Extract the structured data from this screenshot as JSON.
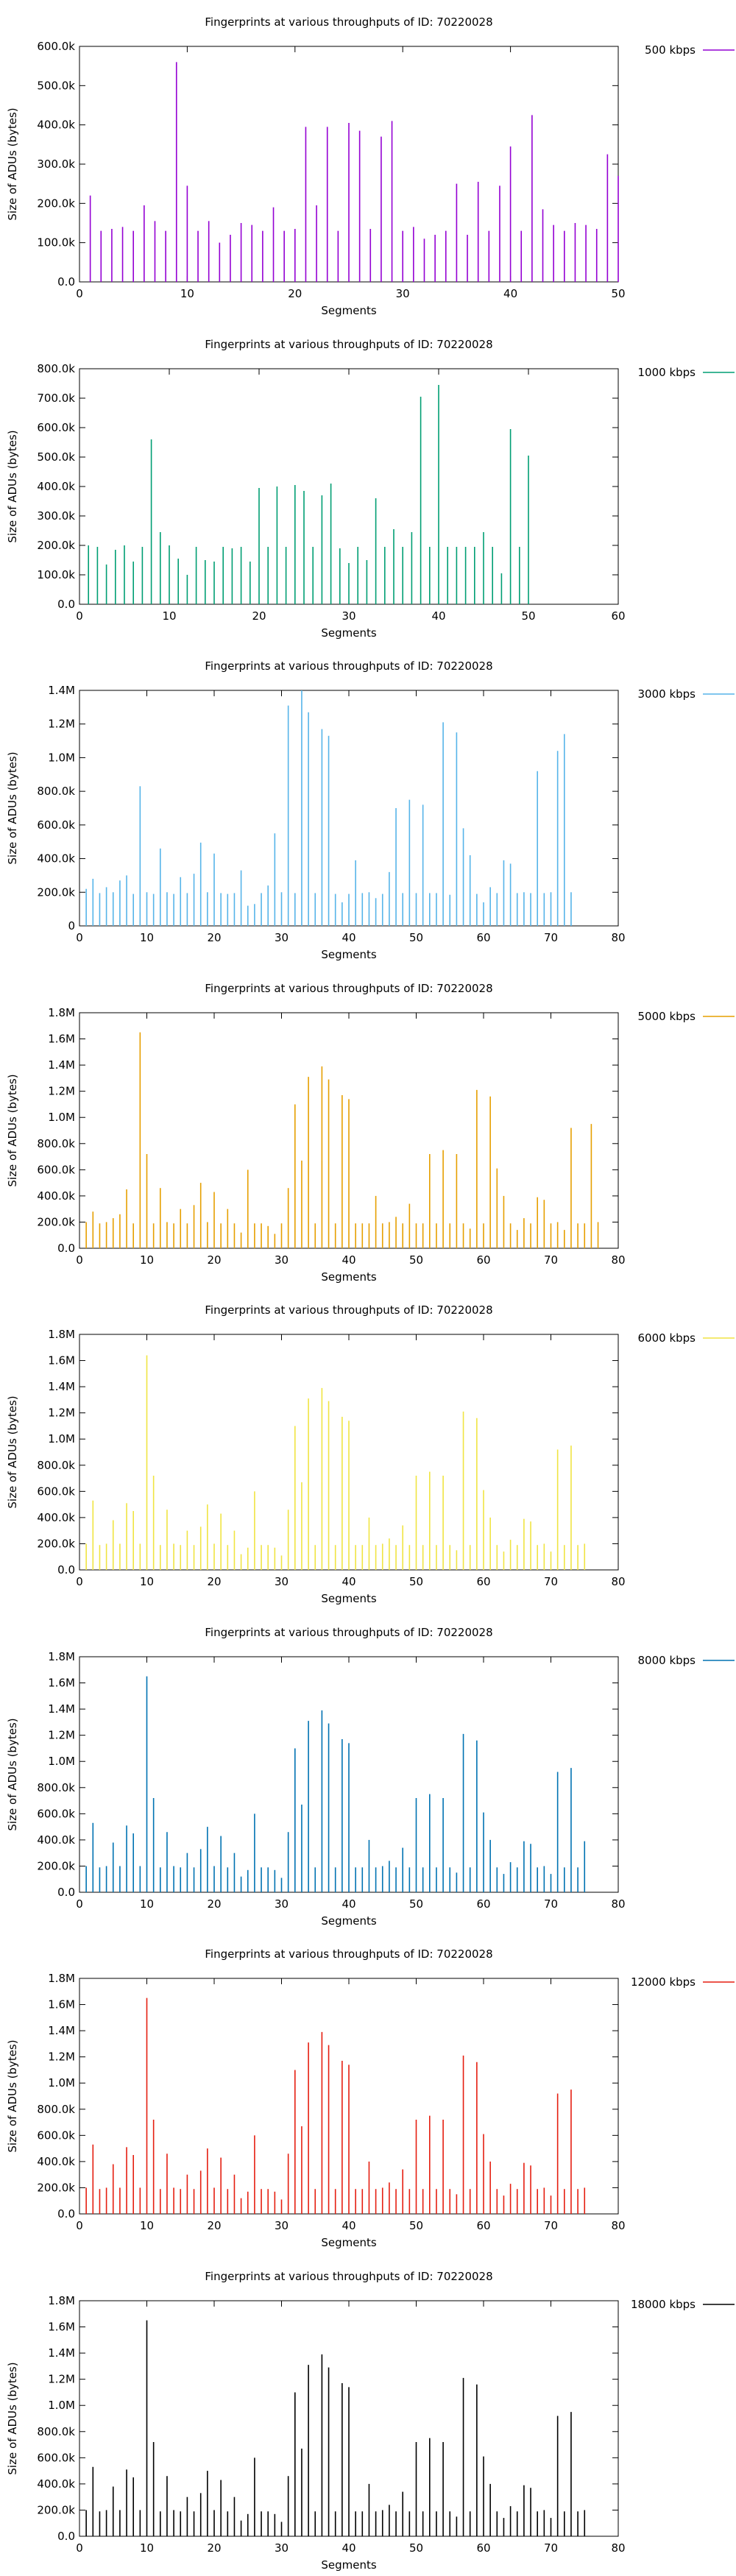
{
  "chart_data": [
    {
      "type": "bar",
      "title": "Fingerprints at various throughputs of ID: 70220028",
      "xlabel": "Segments",
      "ylabel": "Size of ADUs (bytes)",
      "xlim": [
        0,
        50
      ],
      "ylim": [
        0,
        600000
      ],
      "xticks": [
        "0",
        "10",
        "20",
        "30",
        "40",
        "50"
      ],
      "yticks": [
        "0.0",
        "100.0k",
        "200.0k",
        "300.0k",
        "400.0k",
        "500.0k",
        "600.0k"
      ],
      "series": [
        {
          "name": "500 kbps",
          "color": "#9400d3",
          "values": [
            220000,
            130000,
            135000,
            140000,
            130000,
            195000,
            155000,
            130000,
            560000,
            245000,
            130000,
            155000,
            100000,
            120000,
            150000,
            145000,
            130000,
            190000,
            130000,
            135000,
            395000,
            195000,
            395000,
            130000,
            405000,
            385000,
            135000,
            370000,
            410000,
            130000,
            140000,
            110000,
            120000,
            130000,
            250000,
            120000,
            255000,
            130000,
            245000,
            345000,
            130000,
            425000,
            185000,
            145000,
            130000,
            150000,
            145000,
            135000,
            325000,
            270000
          ]
        }
      ]
    },
    {
      "type": "bar",
      "title": "Fingerprints at various throughputs of ID: 70220028",
      "xlabel": "Segments",
      "ylabel": "Size of ADUs (bytes)",
      "xlim": [
        0,
        60
      ],
      "ylim": [
        0,
        800000
      ],
      "xticks": [
        "0",
        "10",
        "20",
        "30",
        "40",
        "50",
        "60"
      ],
      "yticks": [
        "0.0",
        "100.0k",
        "200.0k",
        "300.0k",
        "400.0k",
        "500.0k",
        "600.0k",
        "700.0k",
        "800.0k"
      ],
      "series": [
        {
          "name": "1000 kbps",
          "color": "#009e73",
          "values": [
            200000,
            195000,
            135000,
            185000,
            200000,
            145000,
            195000,
            560000,
            245000,
            200000,
            155000,
            100000,
            195000,
            150000,
            145000,
            195000,
            190000,
            195000,
            145000,
            395000,
            195000,
            400000,
            195000,
            405000,
            385000,
            195000,
            370000,
            410000,
            190000,
            140000,
            195000,
            150000,
            360000,
            195000,
            255000,
            195000,
            245000,
            705000,
            195000,
            745000,
            195000,
            195000,
            195000,
            195000,
            245000,
            195000,
            105000,
            595000,
            195000,
            505000
          ]
        }
      ]
    },
    {
      "type": "bar",
      "title": "Fingerprints at various throughputs of ID: 70220028",
      "xlabel": "Segments",
      "ylabel": "Size of ADUs (bytes)",
      "xlim": [
        0,
        80
      ],
      "ylim": [
        0,
        1400000
      ],
      "xticks": [
        "0",
        "10",
        "20",
        "30",
        "40",
        "50",
        "60",
        "70",
        "80"
      ],
      "yticks": [
        "0",
        "200.0k",
        "400.0k",
        "600.0k",
        "800.0k",
        "1.0M",
        "1.2M",
        "1.4M"
      ],
      "series": [
        {
          "name": "3000 kbps",
          "color": "#56b4e9",
          "values": [
            220000,
            280000,
            195000,
            230000,
            200000,
            270000,
            300000,
            190000,
            830000,
            200000,
            190000,
            460000,
            200000,
            190000,
            290000,
            195000,
            310000,
            495000,
            200000,
            430000,
            195000,
            190000,
            195000,
            330000,
            120000,
            130000,
            195000,
            240000,
            550000,
            200000,
            1310000,
            195000,
            1400000,
            1270000,
            195000,
            1170000,
            1130000,
            190000,
            140000,
            190000,
            390000,
            195000,
            200000,
            165000,
            190000,
            320000,
            700000,
            195000,
            750000,
            195000,
            720000,
            195000,
            195000,
            1210000,
            185000,
            1150000,
            580000,
            420000,
            190000,
            140000,
            230000,
            195000,
            390000,
            370000,
            195000,
            200000,
            195000,
            920000,
            195000,
            200000,
            1040000,
            1140000,
            200000
          ]
        }
      ]
    },
    {
      "type": "bar",
      "title": "Fingerprints at various throughputs of ID: 70220028",
      "xlabel": "Segments",
      "ylabel": "Size of ADUs (bytes)",
      "xlim": [
        0,
        80
      ],
      "ylim": [
        0,
        1800000
      ],
      "xticks": [
        "0",
        "10",
        "20",
        "30",
        "40",
        "50",
        "60",
        "70",
        "80"
      ],
      "yticks": [
        "0.0",
        "200.0k",
        "400.0k",
        "600.0k",
        "800.0k",
        "1.0M",
        "1.2M",
        "1.4M",
        "1.6M",
        "1.8M"
      ],
      "series": [
        {
          "name": "5000 kbps",
          "color": "#e69f00",
          "values": [
            200000,
            280000,
            190000,
            200000,
            230000,
            260000,
            450000,
            190000,
            1650000,
            720000,
            190000,
            460000,
            200000,
            190000,
            300000,
            190000,
            330000,
            500000,
            200000,
            430000,
            190000,
            300000,
            190000,
            120000,
            600000,
            190000,
            190000,
            170000,
            110000,
            190000,
            460000,
            1100000,
            670000,
            1310000,
            190000,
            1390000,
            1290000,
            190000,
            1170000,
            1140000,
            190000,
            190000,
            190000,
            400000,
            190000,
            200000,
            240000,
            190000,
            340000,
            190000,
            190000,
            720000,
            190000,
            750000,
            190000,
            720000,
            190000,
            150000,
            1210000,
            190000,
            1160000,
            610000,
            400000,
            190000,
            140000,
            230000,
            190000,
            390000,
            370000,
            190000,
            200000,
            140000,
            920000,
            190000,
            190000,
            950000,
            200000
          ]
        }
      ]
    },
    {
      "type": "bar",
      "title": "Fingerprints at various throughputs of ID: 70220028",
      "xlabel": "Segments",
      "ylabel": "Size of ADUs (bytes)",
      "xlim": [
        0,
        80
      ],
      "ylim": [
        0,
        1800000
      ],
      "xticks": [
        "0",
        "10",
        "20",
        "30",
        "40",
        "50",
        "60",
        "70",
        "80"
      ],
      "yticks": [
        "0.0",
        "200.0k",
        "400.0k",
        "600.0k",
        "800.0k",
        "1.0M",
        "1.2M",
        "1.4M",
        "1.6M",
        "1.8M"
      ],
      "series": [
        {
          "name": "6000 kbps",
          "color": "#f0e442",
          "values": [
            200000,
            530000,
            190000,
            200000,
            380000,
            200000,
            510000,
            450000,
            200000,
            1640000,
            720000,
            190000,
            460000,
            200000,
            190000,
            300000,
            190000,
            330000,
            500000,
            200000,
            430000,
            190000,
            300000,
            120000,
            170000,
            600000,
            190000,
            190000,
            170000,
            110000,
            460000,
            1100000,
            670000,
            1310000,
            190000,
            1390000,
            1290000,
            190000,
            1170000,
            1140000,
            190000,
            190000,
            400000,
            190000,
            200000,
            240000,
            190000,
            340000,
            190000,
            720000,
            190000,
            750000,
            190000,
            720000,
            190000,
            150000,
            1210000,
            190000,
            1160000,
            610000,
            400000,
            190000,
            140000,
            230000,
            190000,
            390000,
            370000,
            190000,
            200000,
            140000,
            920000,
            190000,
            950000,
            190000,
            200000
          ]
        }
      ]
    },
    {
      "type": "bar",
      "title": "Fingerprints at various throughputs of ID: 70220028",
      "xlabel": "Segments",
      "ylabel": "Size of ADUs (bytes)",
      "xlim": [
        0,
        80
      ],
      "ylim": [
        0,
        1800000
      ],
      "xticks": [
        "0",
        "10",
        "20",
        "30",
        "40",
        "50",
        "60",
        "70",
        "80"
      ],
      "yticks": [
        "0.0",
        "200.0k",
        "400.0k",
        "600.0k",
        "800.0k",
        "1.0M",
        "1.2M",
        "1.4M",
        "1.6M",
        "1.8M"
      ],
      "series": [
        {
          "name": "8000 kbps",
          "color": "#0072b2",
          "values": [
            200000,
            530000,
            190000,
            200000,
            380000,
            200000,
            510000,
            450000,
            200000,
            1650000,
            720000,
            190000,
            460000,
            200000,
            190000,
            300000,
            190000,
            330000,
            500000,
            200000,
            430000,
            190000,
            300000,
            120000,
            170000,
            600000,
            190000,
            190000,
            170000,
            110000,
            460000,
            1100000,
            670000,
            1310000,
            190000,
            1390000,
            1290000,
            190000,
            1170000,
            1140000,
            190000,
            190000,
            400000,
            190000,
            200000,
            240000,
            190000,
            340000,
            190000,
            720000,
            190000,
            750000,
            190000,
            720000,
            190000,
            150000,
            1210000,
            190000,
            1160000,
            610000,
            400000,
            190000,
            140000,
            230000,
            190000,
            390000,
            370000,
            190000,
            200000,
            140000,
            920000,
            190000,
            950000,
            190000,
            390000
          ]
        }
      ]
    },
    {
      "type": "bar",
      "title": "Fingerprints at various throughputs of ID: 70220028",
      "xlabel": "Segments",
      "ylabel": "Size of ADUs (bytes)",
      "xlim": [
        0,
        80
      ],
      "ylim": [
        0,
        1800000
      ],
      "xticks": [
        "0",
        "10",
        "20",
        "30",
        "40",
        "50",
        "60",
        "70",
        "80"
      ],
      "yticks": [
        "0.0",
        "200.0k",
        "400.0k",
        "600.0k",
        "800.0k",
        "1.0M",
        "1.2M",
        "1.4M",
        "1.6M",
        "1.8M"
      ],
      "series": [
        {
          "name": "12000 kbps",
          "color": "#e51e10",
          "values": [
            200000,
            530000,
            190000,
            200000,
            380000,
            200000,
            510000,
            450000,
            200000,
            1650000,
            720000,
            190000,
            460000,
            200000,
            190000,
            300000,
            190000,
            330000,
            500000,
            200000,
            430000,
            190000,
            300000,
            120000,
            170000,
            600000,
            190000,
            190000,
            170000,
            110000,
            460000,
            1100000,
            670000,
            1310000,
            190000,
            1390000,
            1290000,
            190000,
            1170000,
            1140000,
            190000,
            190000,
            400000,
            190000,
            200000,
            240000,
            190000,
            340000,
            190000,
            720000,
            190000,
            750000,
            190000,
            720000,
            190000,
            150000,
            1210000,
            190000,
            1160000,
            610000,
            400000,
            190000,
            140000,
            230000,
            190000,
            390000,
            370000,
            190000,
            200000,
            140000,
            920000,
            190000,
            950000,
            190000,
            200000
          ]
        }
      ]
    },
    {
      "type": "bar",
      "title": "Fingerprints at various throughputs of ID: 70220028",
      "xlabel": "Segments",
      "ylabel": "Size of ADUs (bytes)",
      "xlim": [
        0,
        80
      ],
      "ylim": [
        0,
        1800000
      ],
      "xticks": [
        "0",
        "10",
        "20",
        "30",
        "40",
        "50",
        "60",
        "70",
        "80"
      ],
      "yticks": [
        "0.0",
        "200.0k",
        "400.0k",
        "600.0k",
        "800.0k",
        "1.0M",
        "1.2M",
        "1.4M",
        "1.6M",
        "1.8M"
      ],
      "series": [
        {
          "name": "18000 kbps",
          "color": "#000000",
          "values": [
            200000,
            530000,
            190000,
            200000,
            380000,
            200000,
            510000,
            450000,
            200000,
            1650000,
            720000,
            190000,
            460000,
            200000,
            190000,
            300000,
            190000,
            330000,
            500000,
            200000,
            430000,
            190000,
            300000,
            120000,
            170000,
            600000,
            190000,
            190000,
            170000,
            110000,
            460000,
            1100000,
            670000,
            1310000,
            190000,
            1390000,
            1290000,
            190000,
            1170000,
            1140000,
            190000,
            190000,
            400000,
            190000,
            200000,
            240000,
            190000,
            340000,
            190000,
            720000,
            190000,
            750000,
            190000,
            720000,
            190000,
            150000,
            1210000,
            190000,
            1160000,
            610000,
            400000,
            190000,
            140000,
            230000,
            190000,
            390000,
            370000,
            190000,
            200000,
            140000,
            920000,
            190000,
            950000,
            190000,
            200000
          ]
        }
      ]
    }
  ]
}
